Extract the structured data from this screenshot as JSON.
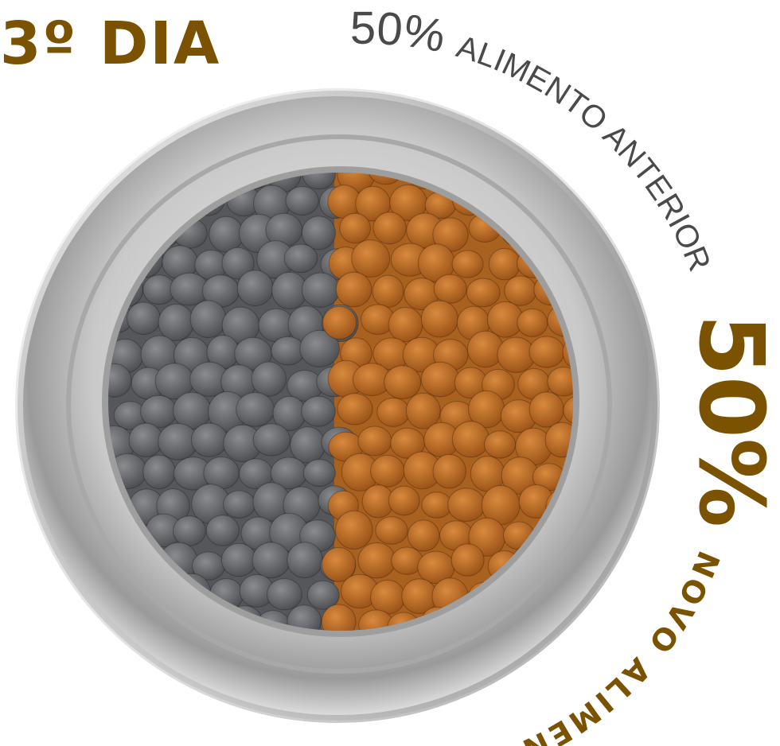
{
  "title": "3º DIA",
  "previous": {
    "percent": "50%",
    "label": "ALIMENTO ANTERIOR"
  },
  "new": {
    "percent": "50%",
    "label": "NOVO ALIMENTO"
  },
  "colors": {
    "brand_brown": "#7a5200",
    "previous_text": "#4a4a4a",
    "old_kibble": "#6b6d70",
    "new_kibble": "#c4742a"
  },
  "proportions": {
    "previous_food_fraction": 0.5,
    "new_food_fraction": 0.5
  }
}
